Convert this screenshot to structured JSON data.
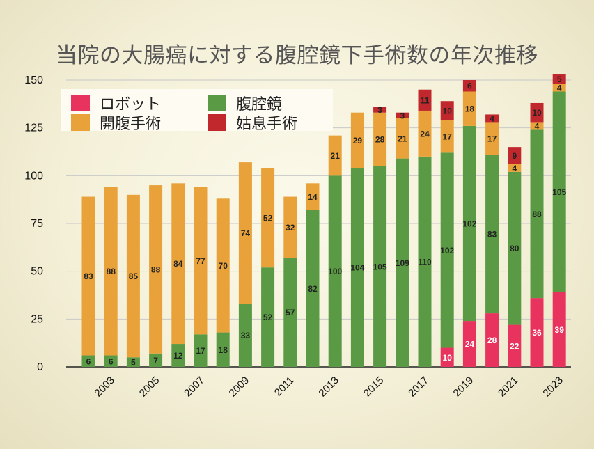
{
  "title": "当院の大腸癌に対する腹腔鏡下手術数の年次推移",
  "legend": [
    {
      "label": "ロボット",
      "color": "#e8335f"
    },
    {
      "label": "腹腔鏡",
      "color": "#5a9a45"
    },
    {
      "label": "開腹手術",
      "color": "#e9a23a"
    },
    {
      "label": "姑息手術",
      "color": "#c0282d"
    }
  ],
  "chart_data": {
    "type": "bar",
    "stacked": true,
    "title": "当院の大腸癌に対する腹腔鏡下手術数の年次推移",
    "categories": [
      "2002",
      "2003",
      "2004",
      "2005",
      "2006",
      "2007",
      "2008",
      "2009",
      "2010",
      "2011",
      "2012",
      "2013",
      "2014",
      "2015",
      "2016",
      "2017",
      "2018",
      "2019",
      "2020",
      "2021",
      "2022",
      "2023"
    ],
    "x_tick_labels": [
      "2003",
      "2005",
      "2007",
      "2009",
      "2011",
      "2013",
      "2015",
      "2017",
      "2019",
      "2021",
      "2023"
    ],
    "ylim": [
      0,
      150
    ],
    "yticks": [
      0,
      25,
      50,
      75,
      100,
      125,
      150
    ],
    "series": [
      {
        "name": "ロボット",
        "color": "#e8335f",
        "label_color": "#ffffff",
        "values": [
          0,
          0,
          0,
          0,
          0,
          0,
          0,
          0,
          0,
          0,
          0,
          0,
          0,
          0,
          0,
          0,
          10,
          24,
          28,
          22,
          36,
          39
        ]
      },
      {
        "name": "腹腔鏡",
        "color": "#5a9a45",
        "label_color": "#222222",
        "values": [
          6,
          6,
          5,
          7,
          12,
          17,
          18,
          33,
          52,
          57,
          82,
          100,
          104,
          105,
          109,
          110,
          102,
          102,
          83,
          80,
          88,
          105
        ]
      },
      {
        "name": "開腹手術",
        "color": "#e9a23a",
        "label_color": "#222222",
        "values": [
          83,
          88,
          85,
          88,
          84,
          77,
          70,
          74,
          52,
          32,
          14,
          21,
          29,
          28,
          21,
          24,
          17,
          18,
          17,
          4,
          4,
          4
        ]
      },
      {
        "name": "姑息手術",
        "color": "#c0282d",
        "label_color": "#222222",
        "values": [
          0,
          0,
          0,
          0,
          0,
          0,
          0,
          0,
          0,
          0,
          0,
          0,
          0,
          3,
          3,
          11,
          10,
          6,
          4,
          9,
          10,
          5
        ]
      }
    ],
    "grid": true,
    "legend_position": "top-left"
  }
}
